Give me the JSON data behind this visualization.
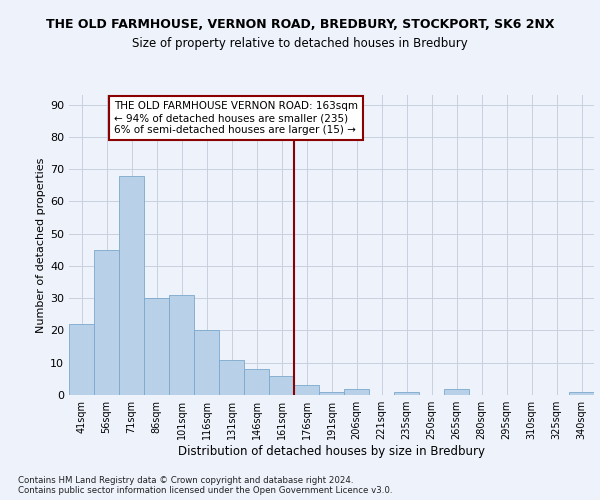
{
  "title1": "THE OLD FARMHOUSE, VERNON ROAD, BREDBURY, STOCKPORT, SK6 2NX",
  "title2": "Size of property relative to detached houses in Bredbury",
  "xlabel": "Distribution of detached houses by size in Bredbury",
  "ylabel": "Number of detached properties",
  "footnote": "Contains HM Land Registry data © Crown copyright and database right 2024.\nContains public sector information licensed under the Open Government Licence v3.0.",
  "bin_labels": [
    "41sqm",
    "56sqm",
    "71sqm",
    "86sqm",
    "101sqm",
    "116sqm",
    "131sqm",
    "146sqm",
    "161sqm",
    "176sqm",
    "191sqm",
    "206sqm",
    "221sqm",
    "235sqm",
    "250sqm",
    "265sqm",
    "280sqm",
    "295sqm",
    "310sqm",
    "325sqm",
    "340sqm"
  ],
  "bar_values": [
    22,
    45,
    68,
    30,
    31,
    20,
    11,
    8,
    6,
    3,
    1,
    2,
    0,
    1,
    0,
    2,
    0,
    0,
    0,
    0,
    1
  ],
  "bar_color": "#b8d0e8",
  "bar_edge_color": "#7aa8cc",
  "ref_line_color": "#8b0000",
  "annotation_title": "THE OLD FARMHOUSE VERNON ROAD: 163sqm",
  "annotation_line1": "← 94% of detached houses are smaller (235)",
  "annotation_line2": "6% of semi-detached houses are larger (15) →",
  "annotation_box_color": "#8b0000",
  "background_color": "#eef2fb",
  "grid_color": "#c8d0df",
  "ylim": [
    0,
    93
  ],
  "yticks": [
    0,
    10,
    20,
    30,
    40,
    50,
    60,
    70,
    80,
    90
  ]
}
